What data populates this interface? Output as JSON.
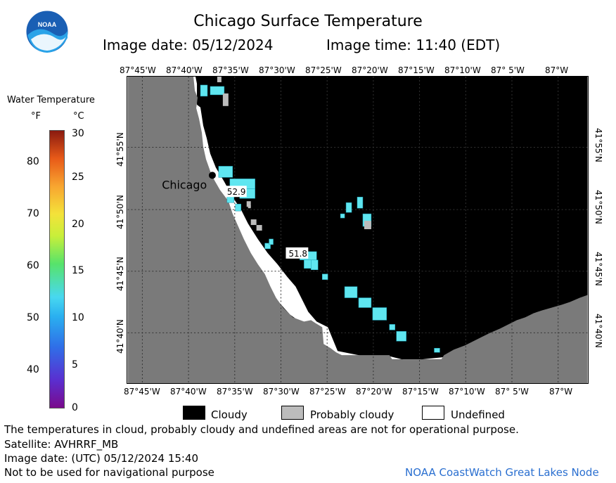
{
  "title": "Chicago Surface Temperature",
  "image_date": "Image date: 05/12/2024",
  "image_time": "Image time: 11:40 (EDT)",
  "logo_text": "NOAA",
  "lon_labels": [
    "87°45'W",
    "87°40'W",
    "87°35'W",
    "87°30'W",
    "87°25'W",
    "87°20'W",
    "87°15'W",
    "87°10'W",
    "87° 5'W",
    "87°W"
  ],
  "lat_labels": [
    "41°55'N",
    "41°50'N",
    "41°45'N",
    "41°40'N"
  ],
  "city_label": "Chicago",
  "temp_labels": [
    "52.9",
    "51.8"
  ],
  "legend": {
    "title": "Water Temperature",
    "unit_f": "°F",
    "unit_c": "°C",
    "f_ticks": [
      "80",
      "70",
      "60",
      "50",
      "40"
    ],
    "c_ticks": [
      "30",
      "25",
      "20",
      "15",
      "10",
      "5",
      "0"
    ]
  },
  "key": {
    "cloudy": "Cloudy",
    "probably_cloudy": "Probably cloudy",
    "undefined": "Undefined"
  },
  "notes": {
    "disclaimer": "The temperatures in cloud, probably cloudy and undefined areas are not for operational purpose.",
    "satellite": "Satellite: AVHRRF_MB",
    "utc_date": "Image date: (UTC) 05/12/2024  15:40",
    "navigation": "Not to be used for navigational purpose",
    "credit": "NOAA CoastWatch Great Lakes Node"
  },
  "colors": {
    "land": "#7a7a7a",
    "cloudy": "#000000",
    "probably_cloudy": "#bcbcbc",
    "undefined": "#ffffff",
    "water_warm": "#5fe6f0",
    "credit": "#2a6fd0"
  }
}
